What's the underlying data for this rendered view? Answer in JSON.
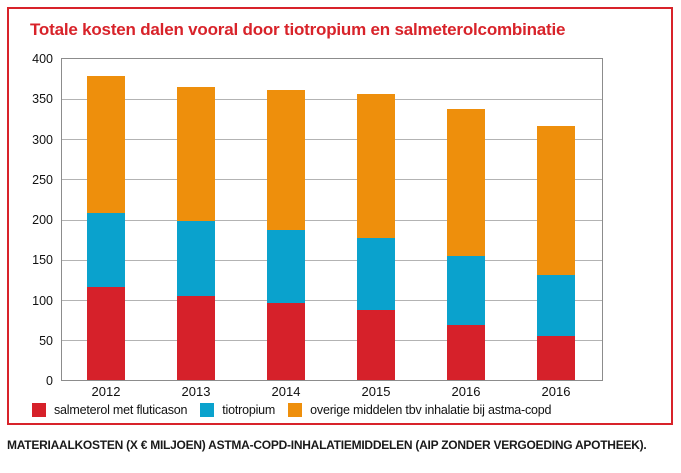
{
  "title": "Totale kosten dalen vooral door tiotropium en salmeterolcombinatie",
  "caption": "MATERIAALKOSTEN (X € MILJOEN) ASTMA-COPD-INHALATIEMIDDELEN (AIP ZONDER VERGOEDING APOTHEEK).",
  "colors": {
    "accent_red": "#d8232a",
    "bar_red": "#d6212a",
    "bar_blue": "#0aa2cd",
    "bar_orange": "#ee8f0c",
    "grid": "#b3b3b3",
    "plot_border": "#8c8c8c",
    "text": "#111111"
  },
  "chart_data": {
    "type": "bar",
    "stacked": true,
    "title": "Totale kosten dalen vooral door tiotropium en salmeterolcombinatie",
    "xlabel": "",
    "ylabel": "Materiaalkosten (x € miljoen)",
    "categories": [
      "2012",
      "2013",
      "2014",
      "2015",
      "2016",
      "2016"
    ],
    "series": [
      {
        "name": "salmeterol met fluticason",
        "color_key": "bar_red",
        "values": [
          116,
          105,
          96,
          87,
          69,
          55
        ]
      },
      {
        "name": "tiotropium",
        "color_key": "bar_blue",
        "values": [
          92,
          93,
          91,
          90,
          85,
          76
        ]
      },
      {
        "name": "overige middelen tbv inhalatie bij astma-copd",
        "color_key": "bar_orange",
        "values": [
          171,
          167,
          175,
          180,
          184,
          185
        ]
      }
    ],
    "stack_totals": [
      379,
      365,
      362,
      357,
      338,
      316
    ],
    "ylim": [
      0,
      400
    ],
    "y_ticks": [
      0,
      50,
      100,
      150,
      200,
      250,
      300,
      350,
      400
    ],
    "grid": true,
    "legend_position": "bottom"
  }
}
